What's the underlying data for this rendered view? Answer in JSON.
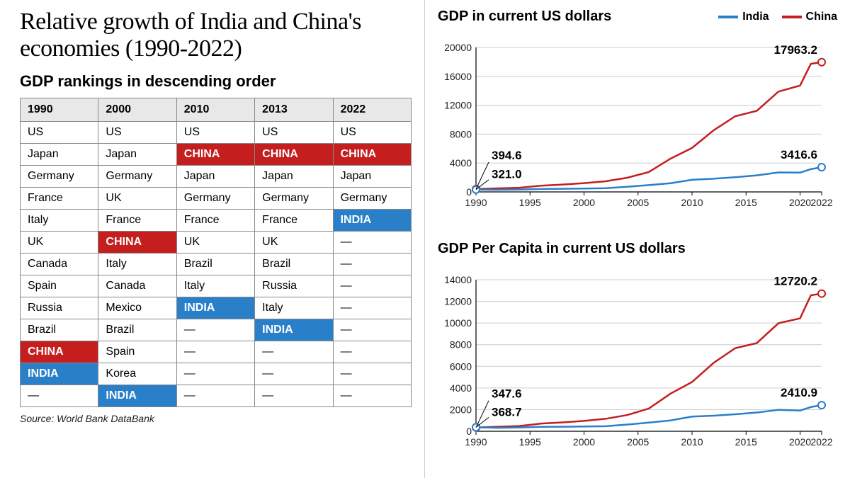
{
  "title": "Relative growth of India and China's economies (1990-2022)",
  "source": "Source: World Bank DataBank",
  "colors": {
    "india": "#2a7fc9",
    "china": "#c41e1e",
    "grid": "#cccccc",
    "axis": "#000000",
    "header_bg": "#e8e8e8",
    "border": "#888888",
    "background": "#ffffff"
  },
  "table": {
    "title": "GDP rankings in descending order",
    "columns": [
      "1990",
      "2000",
      "2010",
      "2013",
      "2022"
    ],
    "rows": [
      [
        {
          "t": "US"
        },
        {
          "t": "US"
        },
        {
          "t": "US"
        },
        {
          "t": "US"
        },
        {
          "t": "US"
        }
      ],
      [
        {
          "t": "Japan"
        },
        {
          "t": "Japan"
        },
        {
          "t": "CHINA",
          "h": "china"
        },
        {
          "t": "CHINA",
          "h": "china"
        },
        {
          "t": "CHINA",
          "h": "china"
        }
      ],
      [
        {
          "t": "Germany"
        },
        {
          "t": "Germany"
        },
        {
          "t": "Japan"
        },
        {
          "t": "Japan"
        },
        {
          "t": "Japan"
        }
      ],
      [
        {
          "t": "France"
        },
        {
          "t": "UK"
        },
        {
          "t": "Germany"
        },
        {
          "t": "Germany"
        },
        {
          "t": "Germany"
        }
      ],
      [
        {
          "t": "Italy"
        },
        {
          "t": "France"
        },
        {
          "t": "France"
        },
        {
          "t": "France"
        },
        {
          "t": "INDIA",
          "h": "india"
        }
      ],
      [
        {
          "t": "UK"
        },
        {
          "t": "CHINA",
          "h": "china"
        },
        {
          "t": "UK"
        },
        {
          "t": "UK"
        },
        {
          "t": "—"
        }
      ],
      [
        {
          "t": "Canada"
        },
        {
          "t": "Italy"
        },
        {
          "t": "Brazil"
        },
        {
          "t": "Brazil"
        },
        {
          "t": "—"
        }
      ],
      [
        {
          "t": "Spain"
        },
        {
          "t": "Canada"
        },
        {
          "t": "Italy"
        },
        {
          "t": "Russia"
        },
        {
          "t": "—"
        }
      ],
      [
        {
          "t": "Russia"
        },
        {
          "t": "Mexico"
        },
        {
          "t": "INDIA",
          "h": "india"
        },
        {
          "t": "Italy"
        },
        {
          "t": "—"
        }
      ],
      [
        {
          "t": "Brazil"
        },
        {
          "t": "Brazil"
        },
        {
          "t": "—"
        },
        {
          "t": "INDIA",
          "h": "india"
        },
        {
          "t": "—"
        }
      ],
      [
        {
          "t": "CHINA",
          "h": "china"
        },
        {
          "t": "Spain"
        },
        {
          "t": "—"
        },
        {
          "t": "—"
        },
        {
          "t": "—"
        }
      ],
      [
        {
          "t": "INDIA",
          "h": "india"
        },
        {
          "t": "Korea"
        },
        {
          "t": "—"
        },
        {
          "t": "—"
        },
        {
          "t": "—"
        }
      ],
      [
        {
          "t": "—"
        },
        {
          "t": "INDIA",
          "h": "india"
        },
        {
          "t": "—"
        },
        {
          "t": "—"
        },
        {
          "t": "—"
        }
      ]
    ]
  },
  "legend": {
    "india": "India",
    "china": "China"
  },
  "chart1": {
    "type": "line",
    "title": "GDP in current US dollars",
    "x_ticks": [
      1990,
      1995,
      2000,
      2005,
      2010,
      2015,
      2020,
      2022
    ],
    "y_ticks": [
      0,
      4000,
      8000,
      12000,
      16000,
      20000
    ],
    "xlim": [
      1990,
      2022
    ],
    "ylim": [
      0,
      20000
    ],
    "line_width": 2.5,
    "marker_radius": 5,
    "series": {
      "china": [
        {
          "x": 1990,
          "y": 394.6
        },
        {
          "x": 1992,
          "y": 490
        },
        {
          "x": 1994,
          "y": 580
        },
        {
          "x": 1996,
          "y": 860
        },
        {
          "x": 1998,
          "y": 1020
        },
        {
          "x": 2000,
          "y": 1210
        },
        {
          "x": 2002,
          "y": 1470
        },
        {
          "x": 2004,
          "y": 1960
        },
        {
          "x": 2006,
          "y": 2750
        },
        {
          "x": 2008,
          "y": 4600
        },
        {
          "x": 2010,
          "y": 6090
        },
        {
          "x": 2012,
          "y": 8530
        },
        {
          "x": 2014,
          "y": 10480
        },
        {
          "x": 2016,
          "y": 11230
        },
        {
          "x": 2018,
          "y": 13890
        },
        {
          "x": 2020,
          "y": 14720
        },
        {
          "x": 2021,
          "y": 17730
        },
        {
          "x": 2022,
          "y": 17963.2
        }
      ],
      "india": [
        {
          "x": 1990,
          "y": 321.0
        },
        {
          "x": 1992,
          "y": 290
        },
        {
          "x": 1994,
          "y": 330
        },
        {
          "x": 1996,
          "y": 400
        },
        {
          "x": 1998,
          "y": 430
        },
        {
          "x": 2000,
          "y": 470
        },
        {
          "x": 2002,
          "y": 520
        },
        {
          "x": 2004,
          "y": 710
        },
        {
          "x": 2006,
          "y": 940
        },
        {
          "x": 2008,
          "y": 1200
        },
        {
          "x": 2010,
          "y": 1680
        },
        {
          "x": 2012,
          "y": 1830
        },
        {
          "x": 2014,
          "y": 2040
        },
        {
          "x": 2016,
          "y": 2290
        },
        {
          "x": 2018,
          "y": 2700
        },
        {
          "x": 2020,
          "y": 2670
        },
        {
          "x": 2021,
          "y": 3150
        },
        {
          "x": 2022,
          "y": 3416.6
        }
      ]
    },
    "callouts": {
      "china_start": "394.6",
      "india_start": "321.0",
      "china_end": "17963.2",
      "india_end": "3416.6"
    }
  },
  "chart2": {
    "type": "line",
    "title": "GDP Per Capita in current US dollars",
    "x_ticks": [
      1990,
      1995,
      2000,
      2005,
      2010,
      2015,
      2020,
      2022
    ],
    "y_ticks": [
      0,
      2000,
      4000,
      6000,
      8000,
      10000,
      12000,
      14000
    ],
    "xlim": [
      1990,
      2022
    ],
    "ylim": [
      0,
      14000
    ],
    "line_width": 2.5,
    "marker_radius": 5,
    "series": {
      "china": [
        {
          "x": 1990,
          "y": 347.6
        },
        {
          "x": 1992,
          "y": 420
        },
        {
          "x": 1994,
          "y": 480
        },
        {
          "x": 1996,
          "y": 710
        },
        {
          "x": 1998,
          "y": 820
        },
        {
          "x": 2000,
          "y": 960
        },
        {
          "x": 2002,
          "y": 1150
        },
        {
          "x": 2004,
          "y": 1500
        },
        {
          "x": 2006,
          "y": 2100
        },
        {
          "x": 2008,
          "y": 3470
        },
        {
          "x": 2010,
          "y": 4550
        },
        {
          "x": 2012,
          "y": 6320
        },
        {
          "x": 2014,
          "y": 7680
        },
        {
          "x": 2016,
          "y": 8150
        },
        {
          "x": 2018,
          "y": 9980
        },
        {
          "x": 2020,
          "y": 10430
        },
        {
          "x": 2021,
          "y": 12560
        },
        {
          "x": 2022,
          "y": 12720.2
        }
      ],
      "india": [
        {
          "x": 1990,
          "y": 368.7
        },
        {
          "x": 1992,
          "y": 320
        },
        {
          "x": 1994,
          "y": 350
        },
        {
          "x": 1996,
          "y": 410
        },
        {
          "x": 1998,
          "y": 420
        },
        {
          "x": 2000,
          "y": 440
        },
        {
          "x": 2002,
          "y": 470
        },
        {
          "x": 2004,
          "y": 620
        },
        {
          "x": 2006,
          "y": 800
        },
        {
          "x": 2008,
          "y": 1000
        },
        {
          "x": 2010,
          "y": 1360
        },
        {
          "x": 2012,
          "y": 1440
        },
        {
          "x": 2014,
          "y": 1570
        },
        {
          "x": 2016,
          "y": 1730
        },
        {
          "x": 2018,
          "y": 1980
        },
        {
          "x": 2020,
          "y": 1910
        },
        {
          "x": 2021,
          "y": 2240
        },
        {
          "x": 2022,
          "y": 2410.9
        }
      ]
    },
    "callouts": {
      "china_start": "347.6",
      "india_start": "368.7",
      "china_end": "12720.2",
      "india_end": "2410.9"
    }
  }
}
